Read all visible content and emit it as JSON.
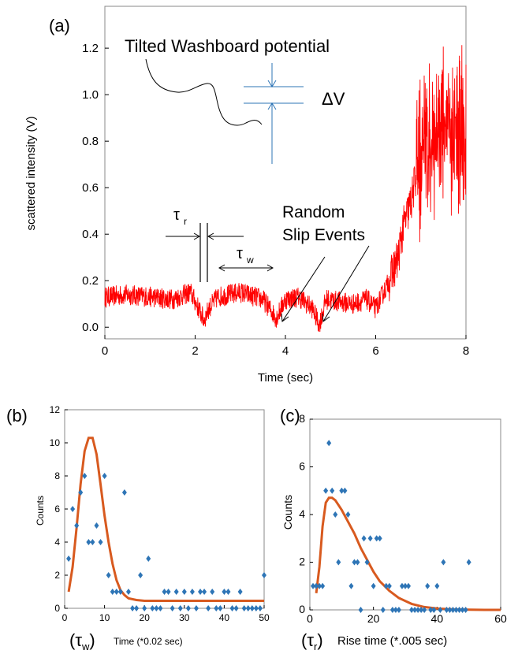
{
  "chart_data": [
    {
      "panel": "(a)",
      "type": "line",
      "xlabel": "Time (sec)",
      "ylabel": "scattered intensity (V)",
      "xlim": [
        0,
        8
      ],
      "ylim": [
        -0.05,
        1.38
      ],
      "xticks": [
        "0",
        "2",
        "4",
        "6",
        "8"
      ],
      "yticks": [
        "0.0",
        "0.2",
        "0.4",
        "0.6",
        "0.8",
        "1.0",
        "1.2"
      ],
      "series": [
        {
          "color": "#ff0000",
          "x": [
            0,
            0.5,
            1.0,
            1.5,
            1.9,
            2.1,
            2.2,
            2.3,
            2.5,
            3.0,
            3.5,
            3.8,
            4.0,
            4.3,
            4.6,
            4.75,
            4.9,
            5.2,
            5.5,
            5.8,
            6.0,
            6.1,
            6.3,
            6.5,
            6.6,
            6.8,
            6.9,
            7.0,
            7.2,
            7.5,
            7.8,
            8.0
          ],
          "values": [
            0.13,
            0.14,
            0.13,
            0.12,
            0.15,
            0.07,
            0.03,
            0.08,
            0.13,
            0.15,
            0.12,
            0.04,
            0.12,
            0.13,
            0.08,
            0.01,
            0.12,
            0.11,
            0.1,
            0.12,
            0.08,
            0.12,
            0.2,
            0.3,
            0.42,
            0.55,
            0.66,
            0.76,
            0.82,
            0.87,
            0.85,
            0.86
          ]
        }
      ],
      "annotations": {
        "inset_title": "Tilted Washboard potential",
        "delta_v": "ΔV",
        "tau_r": "τ",
        "tau_r_sub": "r",
        "tau_w": "τ",
        "tau_w_sub": "w",
        "slip_line1": "Random",
        "slip_line2": "Slip Events"
      }
    },
    {
      "panel": "(b)",
      "type": "scatter",
      "xlabel": "Time (*0.02 sec)",
      "xlabel_prefix": "(τ",
      "xlabel_prefix_sub": "w",
      "xlabel_prefix_end": ")",
      "ylabel": "Counts",
      "xlim": [
        0,
        50
      ],
      "ylim": [
        0,
        12
      ],
      "xticks": [
        "0",
        "10",
        "20",
        "30",
        "40",
        "50"
      ],
      "yticks": [
        "0",
        "2",
        "4",
        "6",
        "8",
        "10",
        "12"
      ],
      "points_color": "#2e75b6",
      "fit_color": "#d85a1f",
      "x": [
        1,
        2,
        3,
        4,
        5,
        6,
        7,
        8,
        9,
        10,
        11,
        12,
        13,
        14,
        15,
        16,
        17,
        18,
        19,
        20,
        21,
        22,
        23,
        24,
        25,
        26,
        27,
        28,
        29,
        30,
        31,
        32,
        33,
        34,
        35,
        36,
        37,
        38,
        39,
        40,
        41,
        42,
        43,
        44,
        45,
        46,
        47,
        48,
        49,
        50
      ],
      "values": [
        3,
        6,
        5,
        7,
        8,
        4,
        4,
        5,
        4,
        8,
        2,
        1,
        1,
        1,
        7,
        1,
        0,
        0,
        2,
        0,
        3,
        0,
        0,
        0,
        1,
        1,
        0,
        1,
        0,
        1,
        0,
        1,
        0,
        1,
        1,
        0,
        1,
        0,
        0,
        1,
        1,
        0,
        0,
        1,
        0,
        0,
        0,
        0,
        0,
        2
      ],
      "fit_x": [
        1,
        2,
        3,
        4,
        5,
        6,
        7,
        8,
        9,
        10,
        11,
        12,
        13,
        14,
        15,
        16,
        18,
        20,
        25,
        30,
        35,
        40,
        45,
        50
      ],
      "fit_y": [
        1.0,
        2.5,
        4.9,
        7.5,
        9.5,
        10.3,
        10.3,
        9.3,
        7.5,
        5.6,
        4.0,
        2.7,
        1.7,
        1.1,
        0.8,
        0.6,
        0.5,
        0.45,
        0.45,
        0.45,
        0.45,
        0.45,
        0.45,
        0.45
      ]
    },
    {
      "panel": "(c)",
      "type": "scatter",
      "xlabel": "Rise time (*.005 sec)",
      "xlabel_prefix": "(τ",
      "xlabel_prefix_sub": "r",
      "xlabel_prefix_end": ")",
      "ylabel": "Counts",
      "xlim": [
        0,
        60
      ],
      "ylim": [
        0,
        8
      ],
      "xticks": [
        "0",
        "20",
        "40",
        "60"
      ],
      "yticks": [
        "0",
        "2",
        "4",
        "6",
        "8"
      ],
      "points_color": "#2e75b6",
      "fit_color": "#d85a1f",
      "x": [
        1,
        2,
        3,
        4,
        5,
        6,
        7,
        8,
        9,
        10,
        11,
        12,
        13,
        14,
        15,
        16,
        17,
        18,
        19,
        20,
        21,
        22,
        23,
        24,
        25,
        26,
        27,
        28,
        29,
        30,
        31,
        32,
        33,
        34,
        35,
        36,
        37,
        38,
        39,
        40,
        41,
        42,
        43,
        44,
        45,
        46,
        47,
        48,
        49,
        50
      ],
      "values": [
        1,
        1,
        1,
        1,
        5,
        7,
        5,
        4,
        2,
        5,
        5,
        4,
        1,
        2,
        2,
        0,
        3,
        2,
        3,
        1,
        3,
        3,
        0,
        1,
        1,
        0,
        0,
        0,
        1,
        1,
        1,
        0,
        0,
        0,
        0,
        0,
        1,
        0,
        0,
        1,
        0,
        2,
        0,
        0,
        0,
        0,
        0,
        0,
        0,
        2
      ],
      "fit_x": [
        2,
        3,
        4,
        5,
        6,
        7,
        8,
        9,
        10,
        12,
        14,
        16,
        18,
        20,
        22,
        25,
        28,
        32,
        36,
        40,
        45,
        50,
        55,
        60
      ],
      "fit_y": [
        0.7,
        1.8,
        3.5,
        4.5,
        4.7,
        4.7,
        4.6,
        4.4,
        4.2,
        3.7,
        3.2,
        2.6,
        2.1,
        1.6,
        1.2,
        0.8,
        0.5,
        0.25,
        0.12,
        0.06,
        0.02,
        0.01,
        0.0,
        0.0
      ]
    }
  ]
}
